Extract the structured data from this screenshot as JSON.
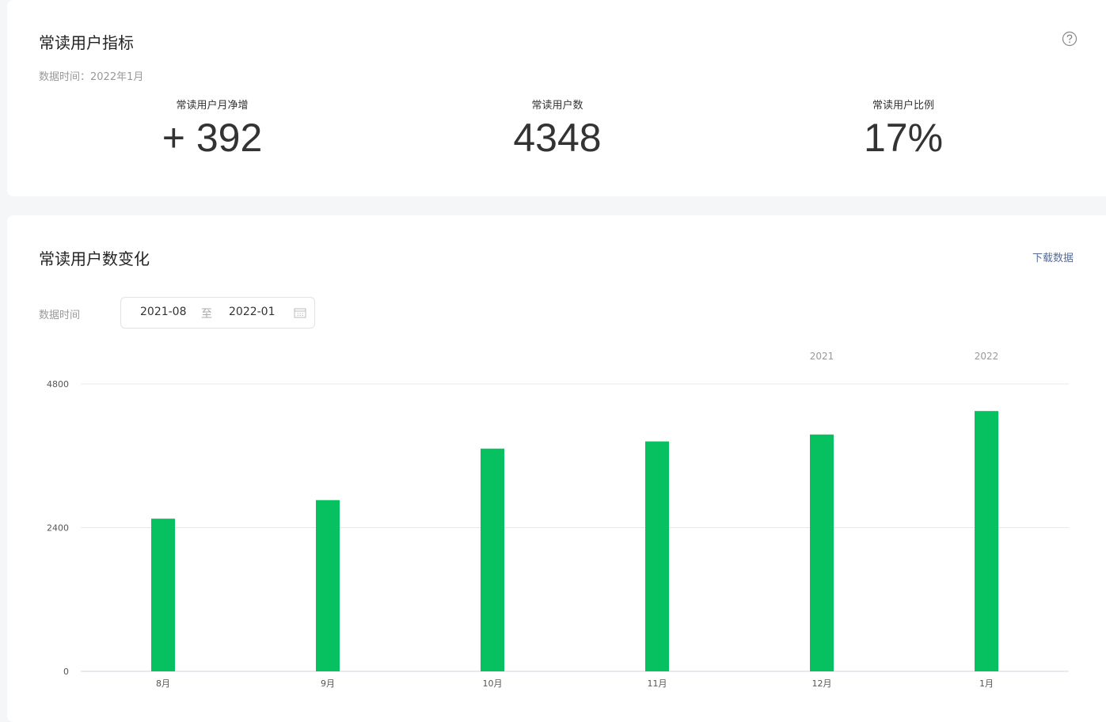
{
  "header": {
    "title": "常读用户指标",
    "data_time": "数据时间：2022年1月"
  },
  "metrics": [
    {
      "label": "常读用户月净增",
      "value": "+ 392"
    },
    {
      "label": "常读用户数",
      "value": "4348"
    },
    {
      "label": "常读用户比例",
      "value": "17%"
    }
  ],
  "controls": {
    "download": "下载数据",
    "date_label": "数据时间",
    "start": "2021-08",
    "separator": "至",
    "end": "2022-01"
  },
  "chart_data": {
    "type": "bar",
    "title": "常读用户数变化",
    "categories": [
      "8月",
      "9月",
      "10月",
      "11月",
      "12月",
      "1月"
    ],
    "year_labels": [
      null,
      null,
      null,
      null,
      "2021",
      "2022"
    ],
    "values": [
      2550,
      2860,
      3720,
      3840,
      3956,
      4348
    ],
    "color": "#07c160",
    "ylim": [
      0,
      4800
    ],
    "yticks": [
      0,
      2400,
      4800
    ],
    "grid": true
  }
}
